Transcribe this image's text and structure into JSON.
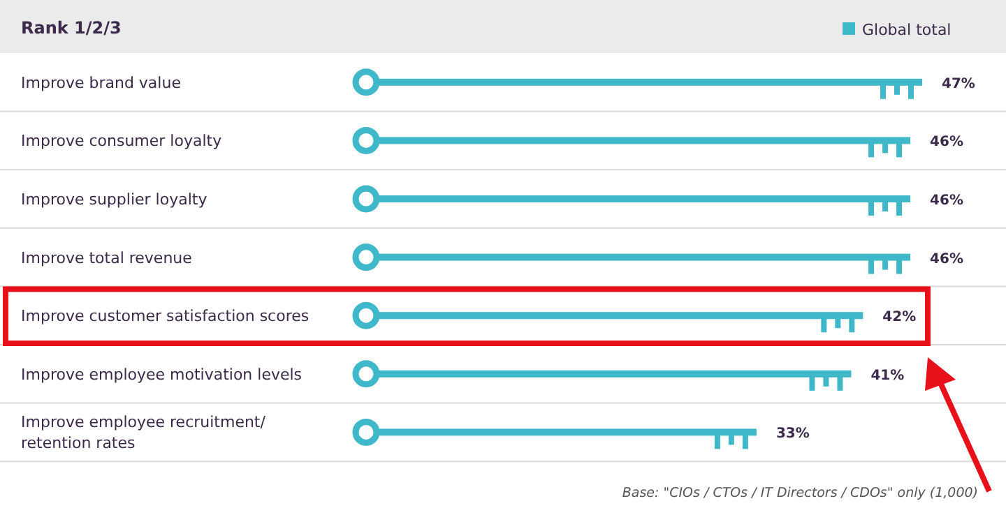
{
  "chart_data": {
    "type": "bar",
    "orientation": "horizontal",
    "title": "Rank 1/2/3",
    "legend": "top right",
    "categories": [
      "Improve brand value",
      "Improve consumer loyalty",
      "Improve supplier loyalty",
      "Improve total revenue",
      "Improve customer satisfaction scores",
      "Improve employee motivation levels",
      "Improve employee recruitment/ retention rates"
    ],
    "series": [
      {
        "name": "Global total",
        "color": "#3fb8c9",
        "values": [
          47,
          46,
          46,
          46,
          42,
          41,
          33
        ],
        "value_labels": [
          "47%",
          "46%",
          "46%",
          "46%",
          "42%",
          "41%",
          "33%"
        ]
      }
    ],
    "annotations": [
      "Base: \"CIOs / CTOs / IT Directors / CDOs\" only (1,000)"
    ]
  }
}
